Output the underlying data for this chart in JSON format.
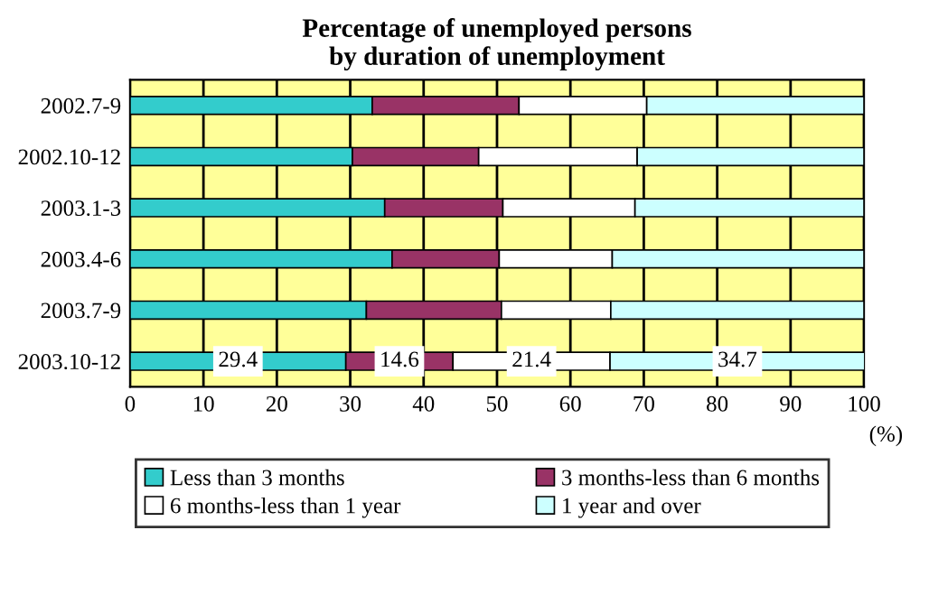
{
  "chart_data": {
    "type": "bar",
    "orientation": "horizontal",
    "stacked": true,
    "title": "Percentage of unemployed persons\nby duration of unemployment",
    "xlabel": "(%)",
    "categories": [
      "2002.7-9",
      "2002.10-12",
      "2003.1-3",
      "2003.4-6",
      "2003.7-9",
      "2003.10-12"
    ],
    "series": [
      {
        "name": "Less than 3 months",
        "color": "#33cccc",
        "values": [
          33.0,
          30.3,
          34.7,
          35.7,
          32.2,
          29.4
        ],
        "value_labels": [
          null,
          null,
          null,
          null,
          null,
          "29.4"
        ]
      },
      {
        "name": "3 months-less than 6 months",
        "color": "#993366",
        "values": [
          20.0,
          17.2,
          16.1,
          14.6,
          18.4,
          14.6
        ],
        "value_labels": [
          null,
          null,
          null,
          null,
          null,
          "14.6"
        ]
      },
      {
        "name": "6 months-less than 1 year",
        "color": "#ffffff",
        "values": [
          17.4,
          21.6,
          18.0,
          15.4,
          14.9,
          21.4
        ],
        "value_labels": [
          null,
          null,
          null,
          null,
          null,
          "21.4"
        ]
      },
      {
        "name": "1 year and over",
        "color": "#ccffff",
        "values": [
          29.6,
          30.9,
          31.2,
          34.3,
          34.5,
          34.7
        ],
        "value_labels": [
          null,
          null,
          null,
          null,
          null,
          "34.7"
        ]
      }
    ],
    "xlim": [
      0,
      100
    ],
    "xticks": [
      0,
      10,
      20,
      30,
      40,
      50,
      60,
      70,
      80,
      90,
      100
    ],
    "grid": "x",
    "legend": "bottom"
  }
}
